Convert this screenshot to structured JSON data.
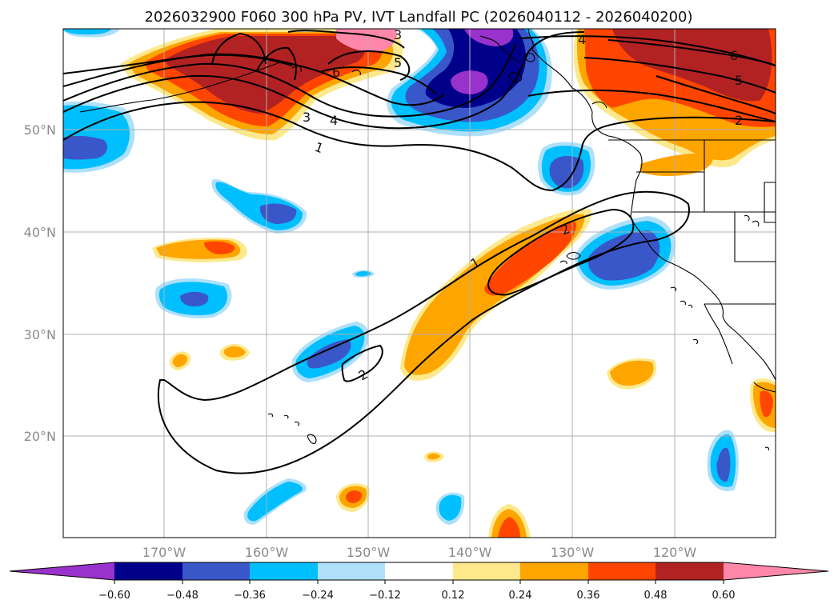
{
  "title": "2026032900 F060 300 hPa PV, IVT Landfall PC (2026040112 - 2026040200)",
  "axes": {
    "lat_labels": [
      "50°N",
      "40°N",
      "30°N",
      "20°N"
    ],
    "lon_labels": [
      "170°W",
      "160°W",
      "150°W",
      "140°W",
      "130°W",
      "120°W"
    ]
  },
  "colorbar": {
    "tick_labels": [
      "−0.60",
      "−0.48",
      "−0.36",
      "−0.24",
      "−0.12",
      "0.12",
      "0.24",
      "0.36",
      "0.48",
      "0.60"
    ],
    "colors": [
      "#9932cc",
      "#00008b",
      "#3a57c9",
      "#00bfff",
      "#aee0fa",
      "#ffffff",
      "#fde98c",
      "#ffa500",
      "#ff4500",
      "#b22222",
      "#ff88aa"
    ]
  },
  "contour_labels": {
    "ridge_north_1": "1",
    "ridge_north_3": "3",
    "ridge_north_4": "4",
    "ridge_north_5": "5",
    "ridge_north_6": "6",
    "top_3": "3",
    "east_4": "4",
    "east_6": "6",
    "east_5": "5",
    "east_2": "2",
    "plume_1": "1",
    "plume_2": "2",
    "sub_2": "2"
  }
}
